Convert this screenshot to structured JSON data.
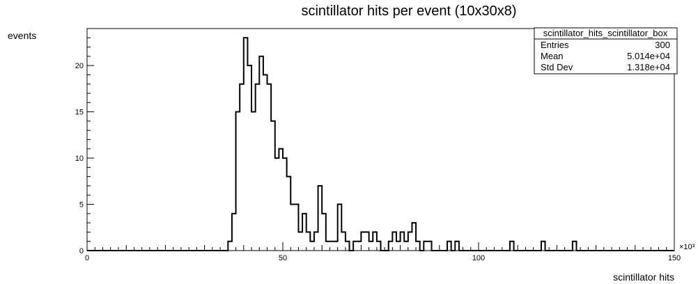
{
  "chart_data": {
    "type": "histogram",
    "title": "scintillator hits per event (10x30x8)",
    "xlabel": "scintillator hits",
    "ylabel": "events",
    "x_multiplier_label": "×10³",
    "xlim": [
      0,
      150
    ],
    "ylim": [
      0,
      24
    ],
    "bin_width": 1,
    "x_ticks": [
      0,
      50,
      100,
      150
    ],
    "y_ticks": [
      0,
      5,
      10,
      15,
      20
    ],
    "bins_start": 36,
    "values": [
      1,
      4,
      15,
      18,
      23,
      20,
      15,
      18,
      21,
      19,
      18,
      14,
      10,
      11,
      10,
      8,
      5,
      5,
      2,
      4,
      2,
      1,
      2,
      7,
      4,
      1,
      1,
      1,
      5,
      2,
      1,
      0,
      1,
      1,
      2,
      2,
      1,
      2,
      1,
      0,
      0,
      1,
      2,
      1,
      2,
      1,
      2,
      3,
      1,
      0,
      1,
      1,
      0,
      0,
      0,
      0,
      1,
      0,
      1,
      0,
      0,
      0,
      0,
      0,
      0,
      0,
      0,
      0,
      0,
      0,
      0,
      0,
      1,
      0,
      0,
      0,
      0,
      0,
      0,
      0,
      1,
      0,
      0,
      0,
      0,
      0,
      0,
      0,
      1
    ],
    "stats_box": {
      "title": "scintillator_hits_scintillator_box",
      "rows": [
        {
          "label": "Entries",
          "value": "300"
        },
        {
          "label": "Mean",
          "value": "5.014e+04"
        },
        {
          "label": "Std Dev",
          "value": "1.318e+04"
        }
      ]
    },
    "colors": {
      "line": "#000000",
      "frame": "#000000",
      "background": "#ffffff"
    }
  }
}
